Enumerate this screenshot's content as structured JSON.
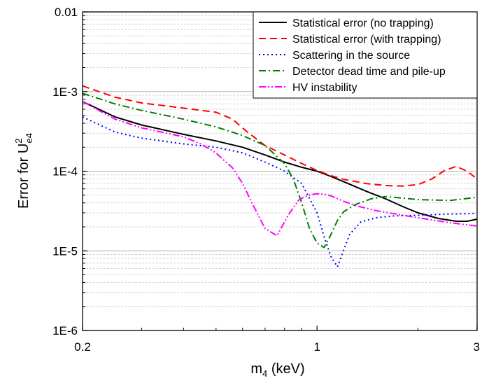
{
  "chart_data": {
    "type": "line",
    "title": "",
    "xlabel": {
      "base": "m",
      "sub": "4",
      "unit": " (keV)"
    },
    "ylabel": {
      "prefix": "Error for U",
      "sup": "2",
      "sub": "e4"
    },
    "x_scale": "log",
    "y_scale": "log",
    "xlim": [
      0.2,
      3
    ],
    "ylim": [
      1e-06,
      0.01
    ],
    "x_ticks": [
      {
        "value": 0.2,
        "label": "0.2"
      },
      {
        "value": 1,
        "label": "1"
      },
      {
        "value": 3,
        "label": "3"
      }
    ],
    "y_ticks": [
      {
        "value": 1e-06,
        "label": "1E-6"
      },
      {
        "value": 1e-05,
        "label": "1E-5"
      },
      {
        "value": 0.0001,
        "label": "1E-4"
      },
      {
        "value": 0.001,
        "label": "1E-3"
      },
      {
        "value": 0.01,
        "label": "0.01"
      }
    ],
    "grid": {
      "major_y": true,
      "minor_y": true,
      "minor_style": "dashed"
    },
    "legend_position": "top-right",
    "series": [
      {
        "name": "Statistical error (no trapping)",
        "color": "#000000",
        "dash": "solid",
        "x": [
          0.2,
          0.25,
          0.3,
          0.4,
          0.5,
          0.6,
          0.7,
          0.8,
          0.9,
          1.0,
          1.1,
          1.2,
          1.4,
          1.6,
          1.8,
          2.0,
          2.3,
          2.6,
          2.8,
          3.0
        ],
        "y": [
          0.00075,
          0.00048,
          0.00038,
          0.00029,
          0.00024,
          0.0002,
          0.00016,
          0.00013,
          0.000112,
          0.0001,
          8.6e-05,
          7.4e-05,
          5.6e-05,
          4.5e-05,
          3.6e-05,
          3e-05,
          2.55e-05,
          2.35e-05,
          2.35e-05,
          2.5e-05
        ]
      },
      {
        "name": "Statistical error (with trapping)",
        "color": "#ff0000",
        "dash": "long-dash",
        "x": [
          0.2,
          0.25,
          0.3,
          0.4,
          0.5,
          0.56,
          0.62,
          0.7,
          0.8,
          0.9,
          1.0,
          1.1,
          1.2,
          1.4,
          1.6,
          1.8,
          2.0,
          2.2,
          2.4,
          2.6,
          2.8,
          3.0
        ],
        "y": [
          0.00118,
          0.00085,
          0.00072,
          0.00062,
          0.00055,
          0.00045,
          0.00031,
          0.00021,
          0.00016,
          0.000125,
          0.000102,
          8.8e-05,
          7.9e-05,
          7e-05,
          6.6e-05,
          6.5e-05,
          6.8e-05,
          8e-05,
          0.000102,
          0.000115,
          0.0001,
          8e-05
        ]
      },
      {
        "name": "Scattering in the source",
        "color": "#0000ff",
        "dash": "dotted",
        "x": [
          0.2,
          0.25,
          0.3,
          0.4,
          0.5,
          0.6,
          0.7,
          0.8,
          0.9,
          1.0,
          1.05,
          1.1,
          1.15,
          1.2,
          1.25,
          1.35,
          1.5,
          1.7,
          2.0,
          2.5,
          3.0
        ],
        "y": [
          0.00048,
          0.00031,
          0.00026,
          0.00022,
          0.0002,
          0.00017,
          0.00013,
          0.0001,
          7e-05,
          3e-05,
          1.5e-05,
          8.5e-06,
          6.3e-06,
          1.02e-05,
          1.6e-05,
          2.3e-05,
          2.6e-05,
          2.75e-05,
          2.8e-05,
          2.9e-05,
          2.95e-05
        ]
      },
      {
        "name": "Detector dead time and pile-up",
        "color": "#008000",
        "dash": "dash-dot",
        "x": [
          0.2,
          0.25,
          0.3,
          0.4,
          0.5,
          0.6,
          0.7,
          0.8,
          0.85,
          0.9,
          0.95,
          1.0,
          1.05,
          1.1,
          1.15,
          1.2,
          1.3,
          1.45,
          1.6,
          1.8,
          2.0,
          2.5,
          3.0
        ],
        "y": [
          0.00095,
          0.0007,
          0.00058,
          0.00045,
          0.00036,
          0.00028,
          0.00021,
          0.000125,
          8e-05,
          4e-05,
          1.9e-05,
          1.25e-05,
          1.1e-05,
          1.6e-05,
          2.4e-05,
          3.1e-05,
          3.8e-05,
          4.5e-05,
          4.8e-05,
          4.6e-05,
          4.4e-05,
          4.3e-05,
          4.7e-05
        ]
      },
      {
        "name": "HV instability",
        "color": "#ff00ff",
        "dash": "dash-dot-dot",
        "x": [
          0.2,
          0.25,
          0.3,
          0.4,
          0.45,
          0.5,
          0.53,
          0.56,
          0.6,
          0.64,
          0.7,
          0.76,
          0.82,
          0.88,
          0.92,
          0.96,
          1.0,
          1.05,
          1.1,
          1.2,
          1.3,
          1.5,
          1.8,
          2.0,
          2.5,
          3.0
        ],
        "y": [
          0.00075,
          0.00045,
          0.00035,
          0.00027,
          0.00022,
          0.00017,
          0.000135,
          0.00011,
          7e-05,
          4e-05,
          1.9e-05,
          1.55e-05,
          2.8e-05,
          4.3e-05,
          4.8e-05,
          5.1e-05,
          5.2e-05,
          5.15e-05,
          4.9e-05,
          4.2e-05,
          3.7e-05,
          3.2e-05,
          2.8e-05,
          2.6e-05,
          2.25e-05,
          2.05e-05
        ]
      }
    ]
  }
}
